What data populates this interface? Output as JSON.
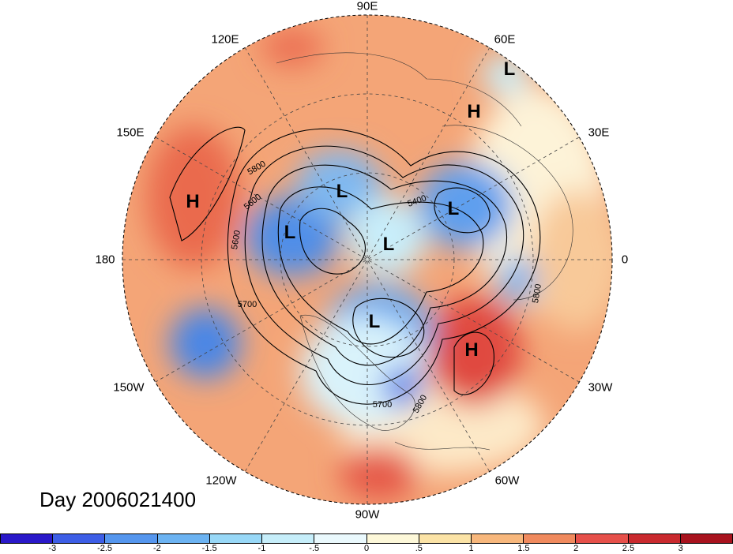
{
  "title": "Day 2006021400",
  "longitude_labels": [
    "90E",
    "60E",
    "30E",
    "0",
    "30W",
    "60W",
    "90W",
    "120W",
    "150W",
    "180",
    "150E",
    "120E"
  ],
  "systems": [
    {
      "type": "L",
      "label": "L"
    },
    {
      "type": "H",
      "label": "H"
    },
    {
      "type": "L",
      "label": "L"
    },
    {
      "type": "L",
      "label": "L"
    },
    {
      "type": "L",
      "label": "L"
    },
    {
      "type": "L",
      "label": "L"
    },
    {
      "type": "L",
      "label": "L"
    },
    {
      "type": "H",
      "label": "H"
    },
    {
      "type": "H",
      "label": "H"
    }
  ],
  "contour_labels": [
    "5800",
    "5600",
    "5600",
    "5400",
    "5700",
    "5700",
    "5800",
    "5800"
  ],
  "colorbar": {
    "ticks": [
      "-3",
      "-2.5",
      "-2",
      "-1.5",
      "-1",
      "-.5",
      "0",
      ".5",
      "1",
      "1.5",
      "2",
      "2.5",
      "3"
    ],
    "colors": [
      "#2a18c9",
      "#3d5ee6",
      "#5596ee",
      "#6cb3f2",
      "#98d8f7",
      "#c6eefa",
      "#eaf9fd",
      "#fdf8d9",
      "#fbe3a6",
      "#f7b77c",
      "#f08a5e",
      "#e6504a",
      "#c92a2e",
      "#a8131e"
    ]
  }
}
